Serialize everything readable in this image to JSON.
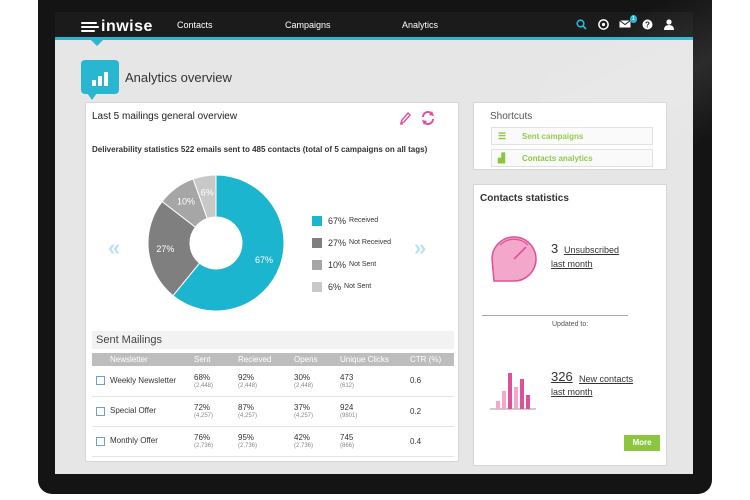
{
  "header": {
    "logo": "inwise",
    "nav": [
      "Contacts",
      "Campaigns",
      "Analytics"
    ],
    "notification_count": "1"
  },
  "page": {
    "title": "Analytics overview"
  },
  "overview": {
    "title": "Last 5 mailings general overview",
    "subtitle": "Deliverability statistics 522 emails sent to 485 contacts (total of 5 campaigns on all tags)",
    "chart_data": {
      "type": "pie",
      "donut": true,
      "slices": [
        {
          "label": "Received",
          "pct": 67,
          "color": "#1bb5cf"
        },
        {
          "label": "Not Received",
          "pct": 27,
          "color": "#7f7f7f"
        },
        {
          "label": "Not Sent",
          "pct": 10,
          "color": "#a6a6a6"
        },
        {
          "label": "Not Sent",
          "pct": 6,
          "color": "#c8c8c8"
        }
      ]
    }
  },
  "sent_mailings": {
    "title": "Sent Mailings",
    "columns": [
      "Newsletter",
      "Sent",
      "Recieved",
      "Opens",
      "Unique Clicks",
      "CTR (%)"
    ],
    "rows": [
      {
        "name": "Weekly Newsletter",
        "sent": "68%",
        "sent_n": "(2,448)",
        "received": "92%",
        "received_n": "(2,448)",
        "opens": "30%",
        "opens_n": "(2,448)",
        "clicks": "473",
        "clicks_n": "(612)",
        "ctr": "0.6"
      },
      {
        "name": "Special Offer",
        "sent": "72%",
        "sent_n": "(4,257)",
        "received": "87%",
        "received_n": "(4,257)",
        "opens": "37%",
        "opens_n": "(4,257)",
        "clicks": "924",
        "clicks_n": "(9801)",
        "ctr": "0.2"
      },
      {
        "name": "Monthly Offer",
        "sent": "76%",
        "sent_n": "(2,736)",
        "received": "95%",
        "received_n": "(2,736)",
        "opens": "42%",
        "opens_n": "(2,736)",
        "clicks": "745",
        "clicks_n": "(866)",
        "ctr": "0.4"
      }
    ]
  },
  "shortcuts": {
    "title": "Shortcuts",
    "items": [
      "Sent campaigns",
      "Contacts analytics"
    ]
  },
  "contacts_stats": {
    "title": "Contacts statistics",
    "unsubscribed_count": "3",
    "unsubscribed_label": "Unsubscribed",
    "unsubscribed_period": "last month",
    "updated_label": "Updated to:",
    "new_count": "326",
    "new_label": "New contacts",
    "new_period": "last month",
    "more_label": "More"
  },
  "colors": {
    "accent": "#29b6d1",
    "green": "#8cc63f",
    "pink": "#e0509a"
  }
}
